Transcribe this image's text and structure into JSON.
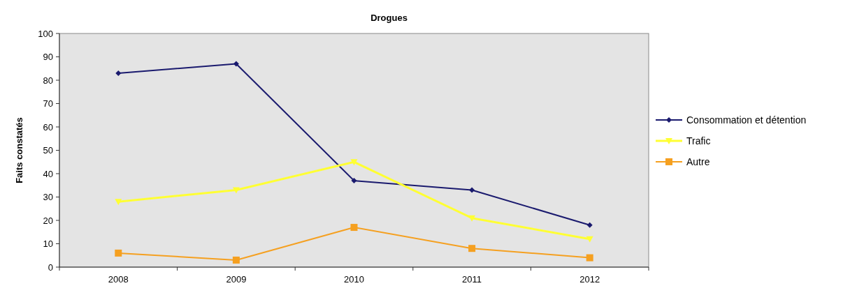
{
  "chart_data": {
    "type": "line",
    "title": "Drogues",
    "ylabel": "Faits constatés",
    "categories": [
      "2008",
      "2009",
      "2010",
      "2011",
      "2012"
    ],
    "series": [
      {
        "name": "Consommation et détention",
        "color": "#1a1a6e",
        "marker": "diamond",
        "values": [
          83,
          87,
          37,
          33,
          18
        ]
      },
      {
        "name": "Trafic",
        "color": "#ffff33",
        "marker": "triangle",
        "values": [
          28,
          33,
          45,
          21,
          12
        ]
      },
      {
        "name": "Autre",
        "color": "#f5a020",
        "marker": "square",
        "values": [
          6,
          3,
          17,
          8,
          4
        ]
      }
    ],
    "ylim": [
      0,
      100
    ],
    "yticks": [
      0,
      10,
      20,
      30,
      40,
      50,
      60,
      70,
      80,
      90,
      100
    ],
    "grid": false,
    "legend": "right"
  }
}
